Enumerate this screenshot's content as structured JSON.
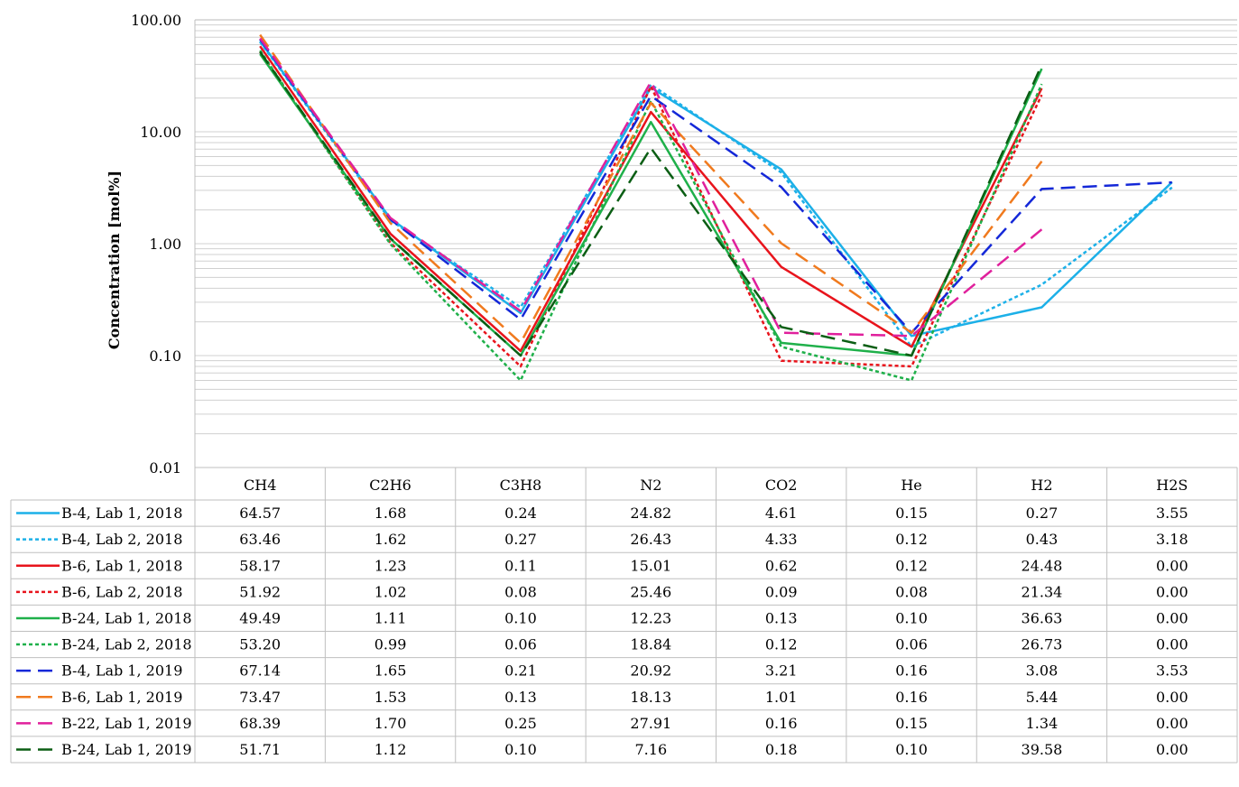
{
  "chart_data": {
    "type": "line",
    "ylabel": "Concentration [mol%]",
    "yscale": "log",
    "ylim": [
      0.01,
      100
    ],
    "yticks": [
      "100.00",
      "10.00",
      "1.00",
      "0.10",
      "0.01"
    ],
    "categories": [
      "CH4",
      "C2H6",
      "C3H8",
      "N2",
      "CO2",
      "He",
      "H2",
      "H2S"
    ],
    "grid": true,
    "legend": "data-table-below",
    "series": [
      {
        "name": "B-4, Lab 1, 2018",
        "color": "#1cb0e8",
        "style": "solid",
        "values": [
          64.57,
          1.68,
          0.24,
          24.82,
          4.61,
          0.15,
          0.27,
          3.55
        ],
        "labels": [
          "64.57",
          "1.68",
          "0.24",
          "24.82",
          "4.61",
          "0.15",
          "0.27",
          "3.55"
        ]
      },
      {
        "name": "B-4, Lab 2, 2018",
        "color": "#1cb0e8",
        "style": "dotted",
        "values": [
          63.46,
          1.62,
          0.27,
          26.43,
          4.33,
          0.12,
          0.43,
          3.18
        ],
        "labels": [
          "63.46",
          "1.62",
          "0.27",
          "26.43",
          "4.33",
          "0.12",
          "0.43",
          "3.18"
        ]
      },
      {
        "name": "B-6, Lab 1, 2018",
        "color": "#e8141c",
        "style": "solid",
        "values": [
          58.17,
          1.23,
          0.11,
          15.01,
          0.62,
          0.12,
          24.48,
          0.0
        ],
        "labels": [
          "58.17",
          "1.23",
          "0.11",
          "15.01",
          "0.62",
          "0.12",
          "24.48",
          "0.00"
        ]
      },
      {
        "name": "B-6, Lab 2, 2018",
        "color": "#e8141c",
        "style": "dotted",
        "values": [
          51.92,
          1.02,
          0.08,
          25.46,
          0.09,
          0.08,
          21.34,
          0.0
        ],
        "labels": [
          "51.92",
          "1.02",
          "0.08",
          "25.46",
          "0.09",
          "0.08",
          "21.34",
          "0.00"
        ]
      },
      {
        "name": "B-24, Lab 1, 2018",
        "color": "#1fb04a",
        "style": "solid",
        "values": [
          49.49,
          1.11,
          0.1,
          12.23,
          0.13,
          0.1,
          36.63,
          0.0
        ],
        "labels": [
          "49.49",
          "1.11",
          "0.10",
          "12.23",
          "0.13",
          "0.10",
          "36.63",
          "0.00"
        ]
      },
      {
        "name": "B-24, Lab 2, 2018",
        "color": "#1fb04a",
        "style": "dotted",
        "values": [
          53.2,
          0.99,
          0.06,
          18.84,
          0.12,
          0.06,
          26.73,
          0.0
        ],
        "labels": [
          "53.20",
          "0.99",
          "0.06",
          "18.84",
          "0.12",
          "0.06",
          "26.73",
          "0.00"
        ]
      },
      {
        "name": "B-4, Lab 1, 2019",
        "color": "#1428d8",
        "style": "longdash",
        "values": [
          67.14,
          1.65,
          0.21,
          20.92,
          3.21,
          0.16,
          3.08,
          3.53
        ],
        "labels": [
          "67.14",
          "1.65",
          "0.21",
          "20.92",
          "3.21",
          "0.16",
          "3.08",
          "3.53"
        ]
      },
      {
        "name": "B-6, Lab 1, 2019",
        "color": "#f07a1e",
        "style": "longdash",
        "values": [
          73.47,
          1.53,
          0.13,
          18.13,
          1.01,
          0.16,
          5.44,
          0.0
        ],
        "labels": [
          "73.47",
          "1.53",
          "0.13",
          "18.13",
          "1.01",
          "0.16",
          "5.44",
          "0.00"
        ]
      },
      {
        "name": "B-22, Lab 1, 2019",
        "color": "#e0209c",
        "style": "longdash",
        "values": [
          68.39,
          1.7,
          0.25,
          27.91,
          0.16,
          0.15,
          1.34,
          0.0
        ],
        "labels": [
          "68.39",
          "1.70",
          "0.25",
          "27.91",
          "0.16",
          "0.15",
          "1.34",
          "0.00"
        ]
      },
      {
        "name": "B-24, Lab 1, 2019",
        "color": "#0b5e14",
        "style": "longdash",
        "values": [
          51.71,
          1.12,
          0.1,
          7.16,
          0.18,
          0.1,
          39.58,
          0.0
        ],
        "labels": [
          "51.71",
          "1.12",
          "0.10",
          "7.16",
          "0.18",
          "0.10",
          "39.58",
          "0.00"
        ]
      }
    ]
  }
}
